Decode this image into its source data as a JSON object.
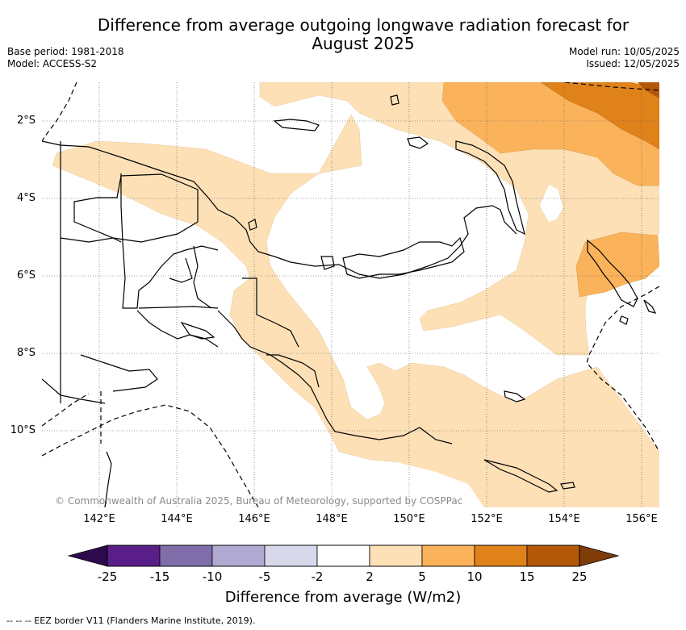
{
  "title": "Difference from average outgoing longwave radiation forecast for August 2025",
  "meta_left": [
    "Base period: 1981-2018",
    "Model: ACCESS-S2"
  ],
  "meta_right": [
    "Model run: 10/05/2025",
    "Issued: 12/05/2025"
  ],
  "copyright": "© Commonwealth of Australia 2025, Bureau of Meteorology, supported by COSPPac",
  "map": {
    "lon_labels": [
      "142°E",
      "144°E",
      "146°E",
      "148°E",
      "150°E",
      "152°E",
      "154°E",
      "156°E"
    ],
    "lat_labels": [
      "2°S",
      "4°S",
      "6°S",
      "8°S",
      "10°S"
    ],
    "gridlines": "dotted"
  },
  "colorbar": {
    "title": "Difference from average (W/m2)",
    "ticks": [
      "-25",
      "-15",
      "-10",
      "-5",
      "-2",
      "2",
      "5",
      "10",
      "15",
      "25"
    ],
    "colors": [
      "#591e87",
      "#7f6ea9",
      "#b0a9d2",
      "#d8d8eb",
      "#ffffff",
      "#fde0b6",
      "#fbb35b",
      "#e0821a",
      "#b35806"
    ],
    "under_color": "#2d0a4e",
    "over_color": "#7f3b08"
  },
  "legend_footnote": "-- -- -- EEZ border V11 (Flanders Marine Institute, 2019)."
}
